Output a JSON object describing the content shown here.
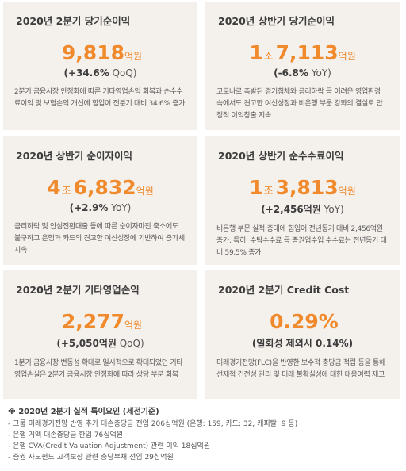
{
  "cards": [
    {
      "title": "2020년 2분기 당기순이익",
      "figure": {
        "prefix": "",
        "prefix_unit": "",
        "number": "9,818",
        "unit": "억원"
      },
      "change": {
        "value": "(+34.6%",
        "period": " QoQ)"
      },
      "description": "2분기 금융시장 안정화에 따른 기타영업손익 회복과 순수수료이익 및 보험손익 개선에 힘입어 전분기 대비 34.6% 증가"
    },
    {
      "title": "2020년 상반기 당기순이익",
      "figure": {
        "prefix": "1",
        "prefix_unit": "조",
        "number": "7,113",
        "unit": "억원"
      },
      "change": {
        "value": "(-6.8%",
        "period": " YoY)"
      },
      "description": "코로나로 촉발된 경기침체와 금리하락 등 어려운 영업환경 속에서도 견고한 여신성장과 비은행 부문 강화의 결실로 안정적 이익창출 지속"
    },
    {
      "title": "2020년 상반기 순이자이익",
      "figure": {
        "prefix": "4",
        "prefix_unit": "조",
        "number": "6,832",
        "unit": "억원"
      },
      "change": {
        "value": "(+2.9%",
        "period": " YoY)"
      },
      "description": "금리하락 및 안심전환대출 등에 따른 순이자마진 축소에도 불구하고 은행과 카드의 견고한 여신성장에 기반하여 증가세 지속"
    },
    {
      "title": "2020년 상반기 순수수료이익",
      "figure": {
        "prefix": "1",
        "prefix_unit": "조",
        "number": "3,813",
        "unit": "억원"
      },
      "change": {
        "value": "(+2,456억원",
        "period": " YoY)"
      },
      "description": "비은행 부문 실적 증대에 힘입어 전년동기 대비 2,456억원 증가. 특히, 수탁수수료 등 증권업수입 수수료는 전년동기 대비 59.5% 증가"
    },
    {
      "title": "2020년 2분기 기타영업손익",
      "figure": {
        "prefix": "",
        "prefix_unit": "",
        "number": "2,277",
        "unit": "억원"
      },
      "change": {
        "value": "(+5,050억원",
        "period": " QoQ)"
      },
      "description": "1분기 금융시장 변동성 확대로 일시적으로 확대되었던 기타영업손실은 2분기 금융시장 안정화에 따라 상당 부분 회복"
    },
    {
      "title": "2020년 2분기 Credit Cost",
      "figure": {
        "prefix": "",
        "prefix_unit": "",
        "number": "0.29%",
        "unit": ""
      },
      "change": {
        "value": "(일회성 제외시 0.14%)",
        "period": ""
      },
      "description": "미래경기전망(FLC)을 반영한 보수적 충당금 적립 등을 통해 선제적 건전성 관리 및 미래 불확실성에 대한 대응여력 제고"
    }
  ],
  "notes": {
    "title": "※ 2020년 2분기 실적 특이요인 (세전기준)",
    "dash": "-",
    "items": [
      "그룹 미래경기전망 반영 추가 대손충당금 전입 206십억원 (은행: 159, 카드: 32, 캐피탈: 9 등)",
      "은행 거액 대손충당금 환입 76십억원",
      "은행 CVA(Credit Valuation Adjustment) 관련 이익 18십억원",
      "증권 사모펀드 고객보상 관련 충당부채 전입 29십억원"
    ]
  },
  "colors": {
    "accent": "#f08a2c",
    "card_bg": "#f4f0ec",
    "text": "#4a4a4a"
  }
}
